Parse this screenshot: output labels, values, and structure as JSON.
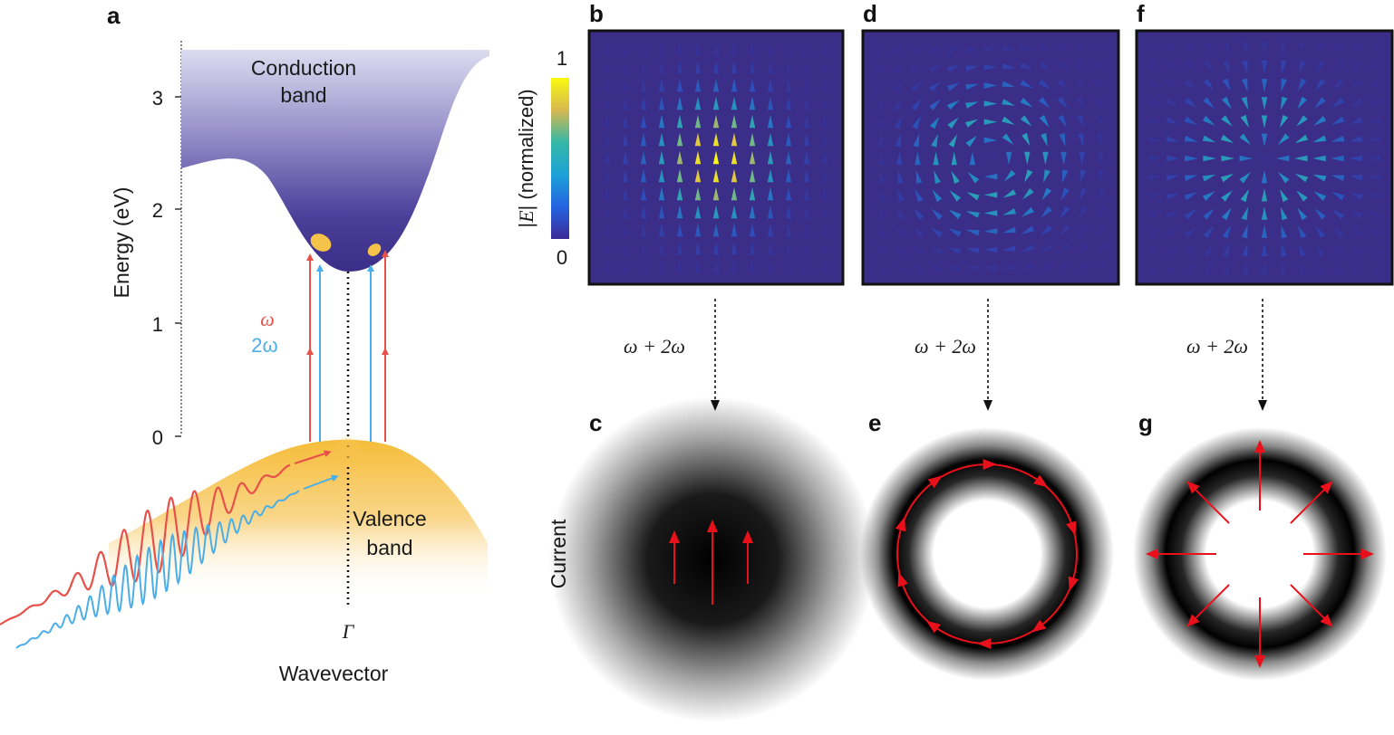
{
  "panel_labels": {
    "a": "a",
    "b": "b",
    "c": "c",
    "d": "d",
    "e": "e",
    "f": "f",
    "g": "g"
  },
  "band_diagram": {
    "y_axis_label": "Energy (eV)",
    "y_ticks": [
      "0",
      "1",
      "2",
      "3"
    ],
    "conduction_label_line1": "Conduction",
    "conduction_label_line2": "band",
    "valence_label_line1": "Valence",
    "valence_label_line2": "band",
    "omega_label": "ω",
    "two_omega_label": "2ω",
    "gamma_label": "Γ",
    "x_axis_label": "Wavevector",
    "colors": {
      "omega": "#e8504a",
      "two_omega": "#4aaee8",
      "conduction": "#4b3f9a",
      "valence": "#f7c14a"
    }
  },
  "colorbar": {
    "label_prefix": "|",
    "label_E": "E",
    "label_suffix": "| (normalized)",
    "max_label": "1",
    "min_label": "0"
  },
  "field_panels": [
    {
      "id": "b",
      "pattern": "linear"
    },
    {
      "id": "d",
      "pattern": "azimuthal"
    },
    {
      "id": "f",
      "pattern": "radial"
    }
  ],
  "process_label": "ω + 2ω",
  "current_row_label": "Current",
  "current_panels": [
    {
      "id": "c",
      "pattern": "linear"
    },
    {
      "id": "e",
      "pattern": "azimuthal"
    },
    {
      "id": "g",
      "pattern": "radial"
    }
  ],
  "arrow_color": "#e8101a"
}
